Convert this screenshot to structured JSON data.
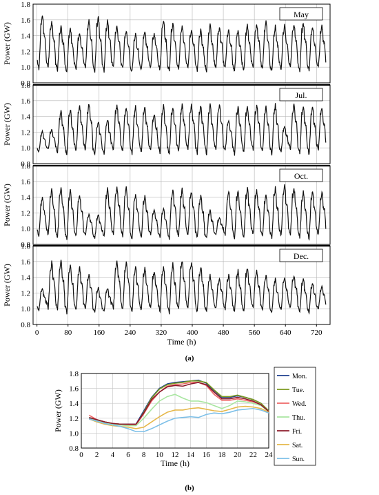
{
  "figure": {
    "caption_a": "(a)",
    "caption_b": "(b)"
  },
  "chart_data": [
    {
      "type": "line",
      "panel_label": "May",
      "ylabel": "Power (GW)",
      "ylim": [
        0.8,
        1.8
      ],
      "yticks": [
        "0.8",
        "1.0",
        "1.2",
        "1.4",
        "1.6",
        "1.8"
      ],
      "xlim": [
        -10,
        755
      ],
      "grid": true,
      "weekday_peaks": [
        1.7,
        1.62,
        1.55,
        1.52,
        1.46,
        1.63,
        1.68,
        1.62,
        1.55,
        1.49,
        1.45,
        1.48,
        1.45,
        1.63,
        1.6,
        1.55,
        1.5,
        1.5,
        1.57,
        1.53,
        1.5,
        1.51,
        1.56,
        1.58,
        1.6,
        1.55,
        1.57,
        1.58,
        1.6,
        1.55,
        1.55
      ],
      "daily_minimum": 0.97
    },
    {
      "type": "line",
      "panel_label": "Jul.",
      "ylabel": "Power (GW)",
      "ylim": [
        0.8,
        1.8
      ],
      "yticks": [
        "0.8",
        "1.0",
        "1.2",
        "1.4",
        "1.6",
        "1.8"
      ],
      "xlim": [
        -10,
        755
      ],
      "grid": true,
      "weekday_peaks": [
        1.22,
        1.25,
        1.5,
        1.52,
        1.56,
        1.6,
        1.35,
        1.38,
        1.58,
        1.55,
        1.55,
        1.55,
        1.45,
        1.57,
        1.55,
        1.58,
        1.58,
        1.57,
        1.58,
        1.58,
        1.38,
        1.55,
        1.57,
        1.58,
        1.55,
        1.58,
        1.3,
        1.58,
        1.58,
        1.57,
        1.55
      ],
      "daily_minimum": 0.95
    },
    {
      "type": "line",
      "panel_label": "Oct.",
      "ylabel": "Power (GW)",
      "ylim": [
        0.8,
        1.8
      ],
      "yticks": [
        "0.8",
        "1.0",
        "1.2",
        "1.4",
        "1.6",
        "1.8"
      ],
      "xlim": [
        -10,
        755
      ],
      "grid": true,
      "weekday_peaks": [
        1.43,
        1.53,
        1.55,
        1.52,
        1.45,
        1.2,
        1.2,
        1.55,
        1.57,
        1.55,
        1.48,
        1.45,
        1.25,
        1.28,
        1.55,
        1.53,
        1.5,
        1.45,
        1.25,
        1.15,
        1.5,
        1.52,
        1.55,
        1.52,
        1.45,
        1.55,
        1.58,
        1.55,
        1.5,
        1.52,
        1.5
      ],
      "daily_minimum": 0.9
    },
    {
      "type": "line",
      "panel_label": "Dec.",
      "ylabel": "Power (GW)",
      "ylim": [
        0.8,
        1.8
      ],
      "yticks": [
        "0.8",
        "1.0",
        "1.2",
        "1.4",
        "1.6",
        "1.8"
      ],
      "xlim": [
        -10,
        755
      ],
      "xlabel": "Time (h)",
      "xticks": [
        0,
        80,
        160,
        240,
        320,
        400,
        480,
        560,
        640,
        720
      ],
      "grid": true,
      "weekday_peaks": [
        1.28,
        1.62,
        1.65,
        1.6,
        1.55,
        1.45,
        1.28,
        1.28,
        1.65,
        1.62,
        1.57,
        1.55,
        1.5,
        1.55,
        1.6,
        1.65,
        1.62,
        1.57,
        1.45,
        1.4,
        1.45,
        1.52,
        1.55,
        1.5,
        1.45,
        1.4,
        1.42,
        1.45,
        1.4,
        1.35,
        1.3
      ],
      "daily_minimum": 0.98
    },
    {
      "type": "line",
      "xlabel": "Time (h)",
      "ylabel": "Power (GW)",
      "xlim": [
        0,
        24
      ],
      "ylim": [
        0.8,
        1.8
      ],
      "xticks": [
        "0",
        "2",
        "4",
        "6",
        "8",
        "10",
        "12",
        "14",
        "16",
        "18",
        "20",
        "22",
        "24"
      ],
      "yticks": [
        "0.8",
        "1.0",
        "1.2",
        "1.4",
        "1.6",
        "1.8"
      ],
      "grid": true,
      "legend_position": "right",
      "x": [
        1,
        2,
        3,
        4,
        5,
        6,
        7,
        8,
        9,
        10,
        11,
        12,
        13,
        14,
        15,
        16,
        17,
        18,
        19,
        20,
        21,
        22,
        23,
        24
      ],
      "series": [
        {
          "name": "Mon.",
          "color": "#1f3f8f",
          "values": [
            1.2,
            1.18,
            1.15,
            1.13,
            1.12,
            1.12,
            1.12,
            1.3,
            1.48,
            1.6,
            1.66,
            1.68,
            1.69,
            1.7,
            1.71,
            1.67,
            1.57,
            1.48,
            1.48,
            1.5,
            1.48,
            1.45,
            1.4,
            1.3
          ]
        },
        {
          "name": "Tue.",
          "color": "#7b9a1f",
          "values": [
            1.21,
            1.18,
            1.15,
            1.13,
            1.12,
            1.11,
            1.11,
            1.28,
            1.47,
            1.59,
            1.65,
            1.67,
            1.68,
            1.7,
            1.7,
            1.68,
            1.58,
            1.49,
            1.49,
            1.51,
            1.48,
            1.45,
            1.4,
            1.3
          ]
        },
        {
          "name": "Wed.",
          "color": "#ee6666",
          "values": [
            1.24,
            1.18,
            1.15,
            1.13,
            1.12,
            1.11,
            1.11,
            1.26,
            1.43,
            1.55,
            1.63,
            1.65,
            1.66,
            1.68,
            1.68,
            1.64,
            1.52,
            1.44,
            1.44,
            1.46,
            1.44,
            1.42,
            1.38,
            1.29
          ]
        },
        {
          "name": "Thu.",
          "color": "#a8e6a0",
          "values": [
            1.21,
            1.17,
            1.14,
            1.12,
            1.11,
            1.1,
            1.1,
            1.2,
            1.32,
            1.43,
            1.49,
            1.52,
            1.47,
            1.43,
            1.43,
            1.41,
            1.37,
            1.33,
            1.37,
            1.43,
            1.42,
            1.4,
            1.37,
            1.29
          ]
        },
        {
          "name": "Fri.",
          "color": "#8b1a2a",
          "values": [
            1.21,
            1.18,
            1.15,
            1.13,
            1.12,
            1.12,
            1.12,
            1.27,
            1.45,
            1.55,
            1.62,
            1.64,
            1.63,
            1.66,
            1.68,
            1.65,
            1.55,
            1.46,
            1.46,
            1.48,
            1.46,
            1.43,
            1.38,
            1.29
          ]
        },
        {
          "name": "Sat.",
          "color": "#e6b84a",
          "values": [
            1.19,
            1.15,
            1.12,
            1.1,
            1.09,
            1.08,
            1.06,
            1.08,
            1.15,
            1.22,
            1.28,
            1.31,
            1.31,
            1.33,
            1.34,
            1.32,
            1.3,
            1.29,
            1.32,
            1.35,
            1.36,
            1.35,
            1.33,
            1.28
          ]
        },
        {
          "name": "Sun.",
          "color": "#7ec0e8",
          "values": [
            1.19,
            1.16,
            1.13,
            1.11,
            1.09,
            1.06,
            1.02,
            1.02,
            1.06,
            1.11,
            1.16,
            1.2,
            1.21,
            1.22,
            1.21,
            1.25,
            1.27,
            1.26,
            1.28,
            1.31,
            1.32,
            1.33,
            1.31,
            1.27
          ]
        }
      ]
    }
  ]
}
